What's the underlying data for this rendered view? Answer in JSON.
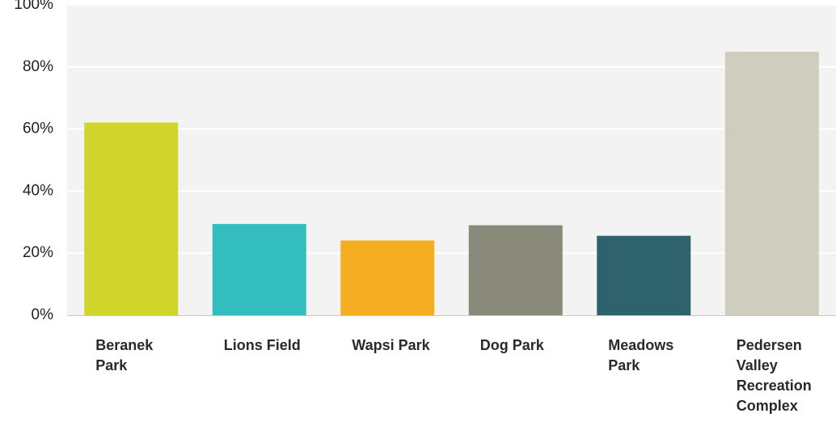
{
  "chart_data": {
    "type": "bar",
    "title": "",
    "xlabel": "",
    "ylabel": "",
    "ylim": [
      0,
      100
    ],
    "y_ticks": [
      {
        "value": 0,
        "label": "0%"
      },
      {
        "value": 20,
        "label": "20%"
      },
      {
        "value": 40,
        "label": "40%"
      },
      {
        "value": 60,
        "label": "60%"
      },
      {
        "value": 80,
        "label": "80%"
      },
      {
        "value": 100,
        "label": "100%"
      }
    ],
    "categories": [
      [
        "Beranek",
        "Park"
      ],
      [
        "Lions Field"
      ],
      [
        "Wapsi Park"
      ],
      [
        "Dog Park"
      ],
      [
        "Meadows",
        "Park"
      ],
      [
        "Pedersen",
        "Valley",
        "Recreation",
        "Complex"
      ]
    ],
    "values": [
      62.1,
      29.4,
      24.1,
      29.0,
      25.6,
      84.9
    ],
    "colors": [
      "#cfd52a",
      "#33bdbf",
      "#f5ae21",
      "#8a8a7a",
      "#2e626d",
      "#cfcdbd"
    ],
    "grid": true,
    "legend": "none",
    "plot_background": "#f3f3f3",
    "gridline_color": "#ffffff"
  }
}
